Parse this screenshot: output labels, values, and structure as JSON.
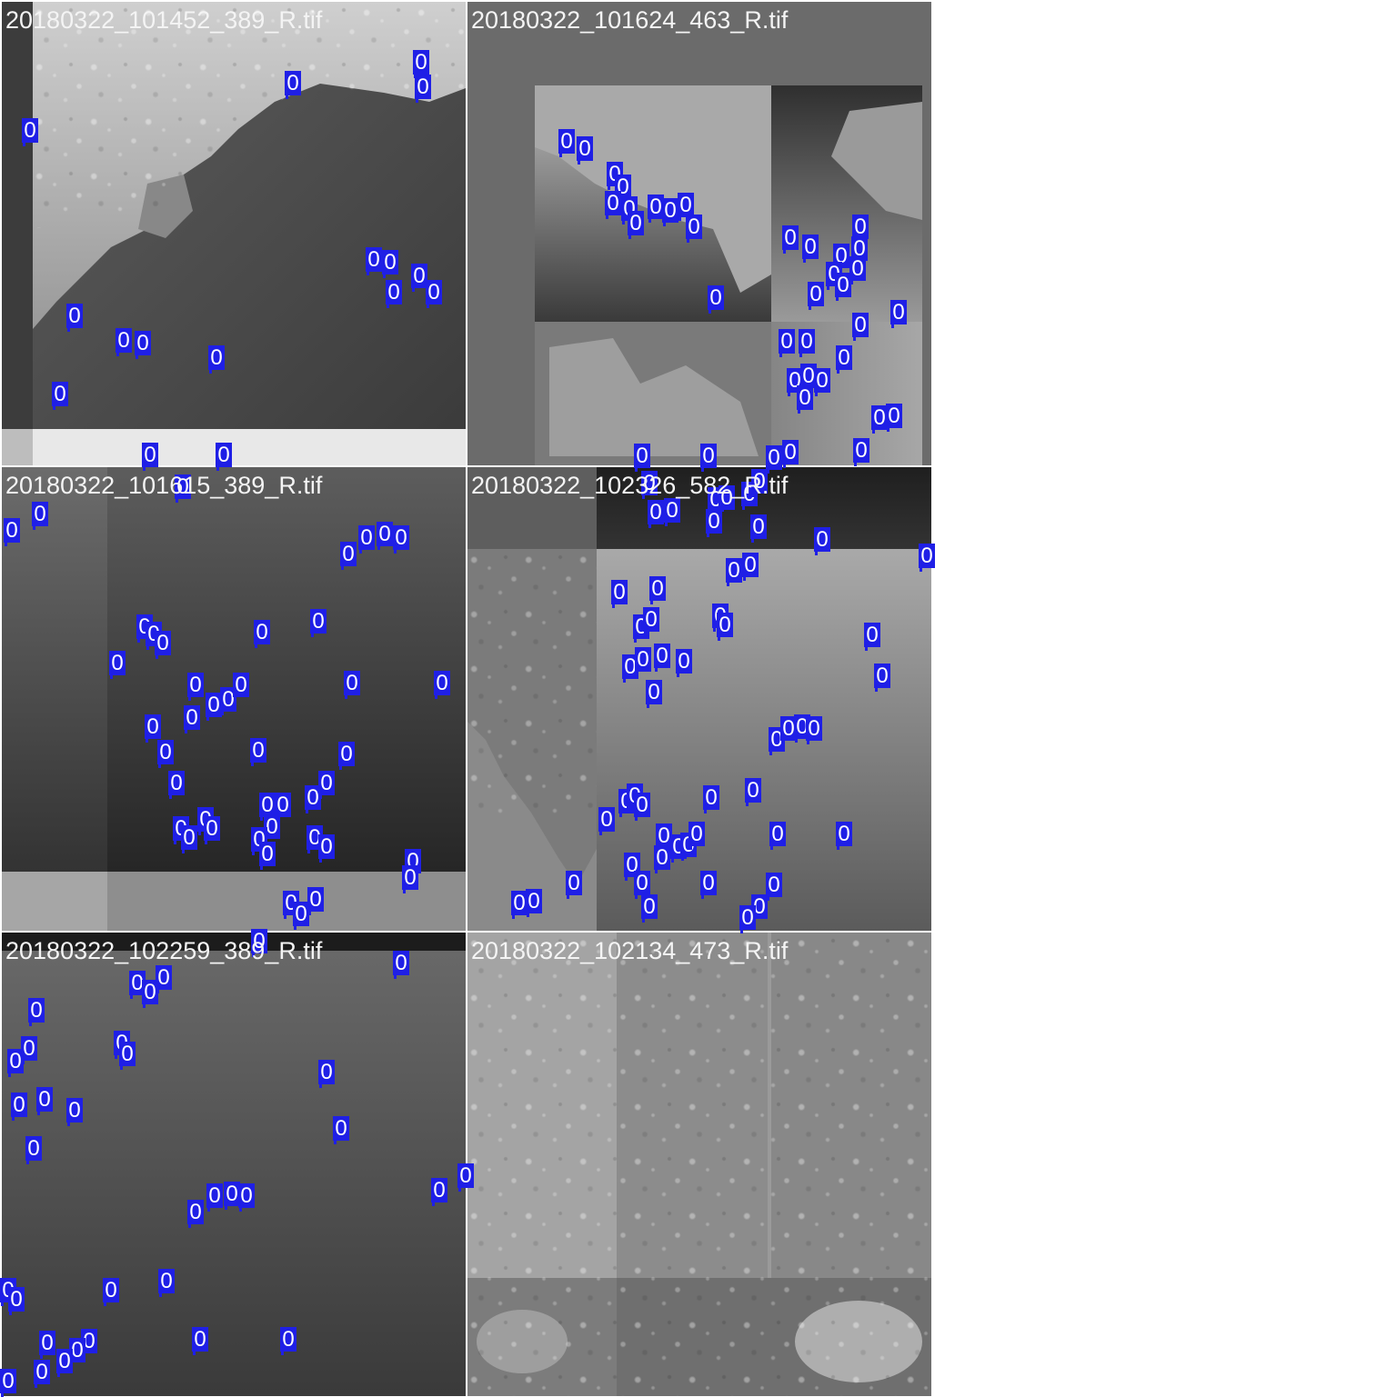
{
  "tiles": [
    {
      "label": "20180322_101452_389_R.tif"
    },
    {
      "label": "20180322_101624_463_R.tif"
    },
    {
      "label": "20180322_101615_389_R.tif"
    },
    {
      "label": "20180322_102326_582_R.tif"
    },
    {
      "label": "20180322_102259_389_R.tif"
    },
    {
      "label": "20180322_102134_473_R.tif"
    }
  ],
  "detection_label": "0",
  "colors": {
    "detection_box": "#1f1fe6",
    "label_text": "#f4f4f4",
    "background": "#ffffff"
  }
}
